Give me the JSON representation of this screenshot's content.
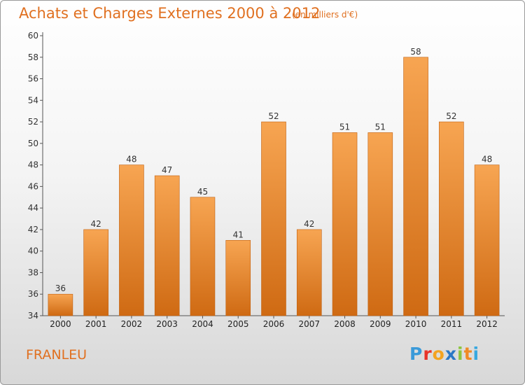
{
  "chart_data": {
    "type": "bar",
    "title": "Achats et Charges Externes 2000 à 2012",
    "subtitle": "(en milliers d'€)",
    "categories": [
      "2000",
      "2001",
      "2002",
      "2003",
      "2004",
      "2005",
      "2006",
      "2007",
      "2008",
      "2009",
      "2010",
      "2011",
      "2012"
    ],
    "values": [
      36,
      42,
      48,
      47,
      45,
      41,
      52,
      42,
      51,
      51,
      58,
      52,
      48
    ],
    "ylim": [
      34,
      60
    ],
    "yticks": [
      34,
      36,
      38,
      40,
      42,
      44,
      46,
      48,
      50,
      52,
      54,
      56,
      58,
      60
    ],
    "grid": false,
    "bar_color_top": "#f7a552",
    "bar_color_bottom": "#cf6a13"
  },
  "location": "FRANLEU",
  "brand": {
    "name": "Proxiti",
    "letters": [
      {
        "ch": "P",
        "color": "#3a9ad9"
      },
      {
        "ch": "r",
        "color": "#e8342a"
      },
      {
        "ch": "o",
        "color": "#f3a321"
      },
      {
        "ch": "x",
        "color": "#2b78c5"
      },
      {
        "ch": "i",
        "color": "#8cc63f"
      },
      {
        "ch": "t",
        "color": "#f08a24"
      },
      {
        "ch": "i",
        "color": "#37a8e0"
      }
    ]
  }
}
